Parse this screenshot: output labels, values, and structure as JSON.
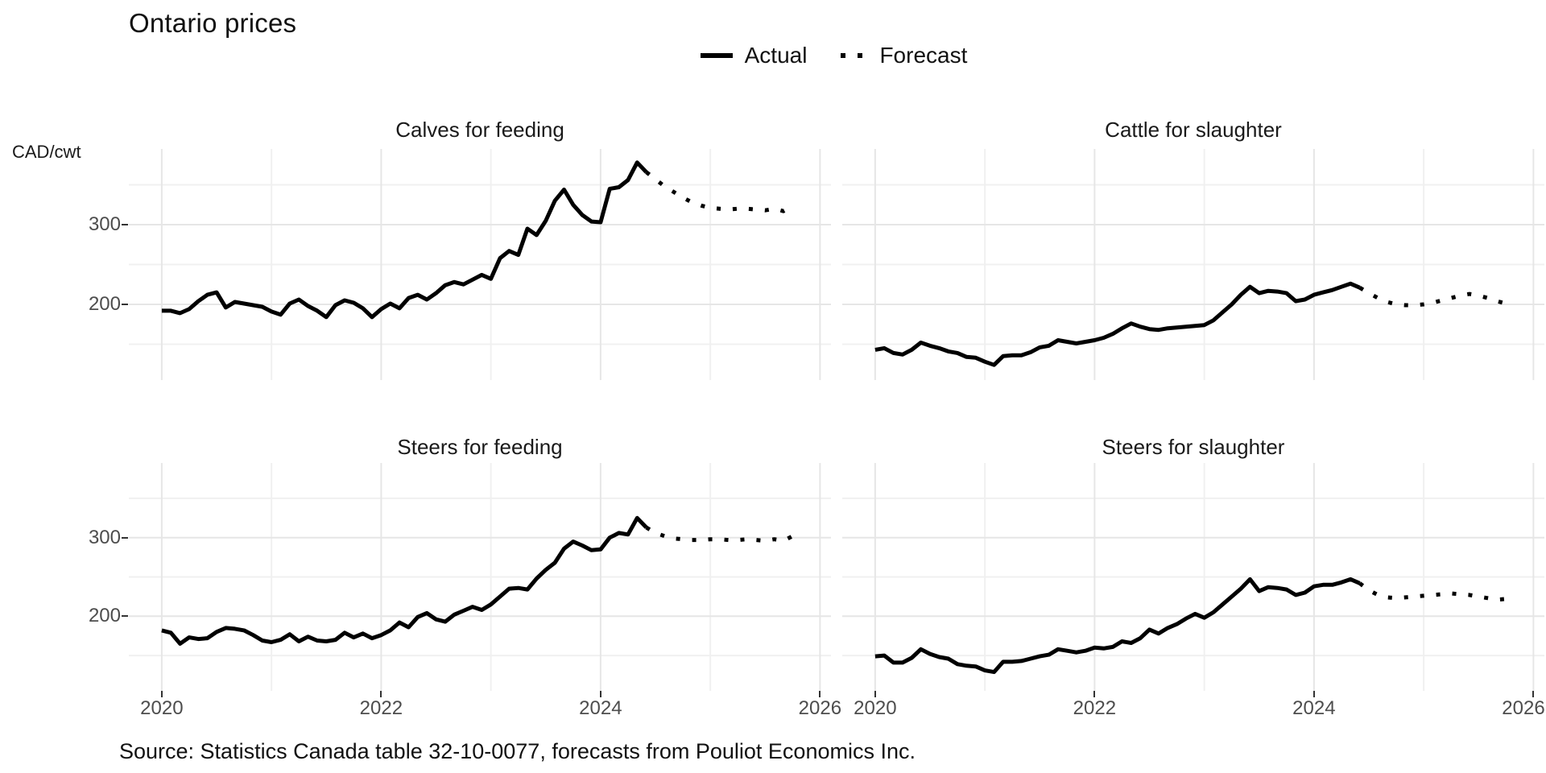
{
  "title": "Ontario prices",
  "y_axis_title": "CAD/cwt",
  "caption": "Source: Statistics Canada table 32-10-0077, forecasts from Pouliot Economics Inc.",
  "legend": {
    "actual_label": "Actual",
    "forecast_label": "Forecast",
    "position": "top-center"
  },
  "colors": {
    "line": "#000000",
    "grid_major": "#e6e6e6",
    "grid_minor": "#f0f0f0",
    "axis_text": "#4d4d4d",
    "tick": "#333333",
    "text": "#111111",
    "background": "#ffffff"
  },
  "chart_data": {
    "type": "line",
    "layout": "2x2 facets",
    "x_unit": "monthly",
    "start": "2020-01",
    "actual_end": "2024-06",
    "forecast_end": "2025-10",
    "xlim": [
      2019.7,
      2026.1
    ],
    "ylim": [
      105,
      395
    ],
    "x_major_ticks": [
      2020,
      2022,
      2024,
      2026
    ],
    "x_minor_ticks": [
      2021,
      2023,
      2025
    ],
    "y_major_ticks": [
      200,
      300
    ],
    "y_minor_ticks": [
      150,
      250,
      350
    ],
    "grid": true,
    "legend_entries": [
      "Actual",
      "Forecast"
    ],
    "series_style": {
      "actual": "solid",
      "forecast": "dotted"
    },
    "panels": [
      {
        "title": "Calves for feeding",
        "actual": [
          192,
          192,
          189,
          194,
          204,
          212,
          215,
          196,
          203,
          201,
          199,
          197,
          191,
          187,
          201,
          206,
          198,
          192,
          184,
          199,
          205,
          202,
          195,
          184,
          194,
          201,
          195,
          208,
          212,
          206,
          214,
          224,
          228,
          225,
          231,
          237,
          232,
          258,
          267,
          262,
          295,
          287,
          305,
          330,
          344,
          325,
          312,
          304,
          303,
          345,
          347,
          356,
          378,
          366
        ],
        "forecast": [
          366,
          357,
          348,
          341,
          334,
          328,
          324,
          321,
          320,
          319,
          320,
          320,
          319,
          318,
          320,
          317,
          323
        ]
      },
      {
        "title": "Cattle for slaughter",
        "actual": [
          143,
          145,
          139,
          137,
          143,
          152,
          148,
          145,
          141,
          139,
          134,
          133,
          128,
          124,
          135,
          136,
          136,
          140,
          146,
          148,
          155,
          153,
          151,
          153,
          155,
          158,
          163,
          170,
          176,
          172,
          169,
          168,
          170,
          171,
          172,
          173,
          174,
          180,
          190,
          200,
          212,
          222,
          214,
          217,
          216,
          214,
          204,
          206,
          212,
          215,
          218,
          222,
          226,
          221
        ],
        "forecast": [
          221,
          214,
          208,
          203,
          200,
          199,
          199,
          200,
          202,
          205,
          208,
          211,
          213,
          211,
          208,
          204,
          201
        ]
      },
      {
        "title": "Steers for feeding",
        "actual": [
          182,
          179,
          165,
          173,
          171,
          172,
          180,
          185,
          184,
          182,
          176,
          169,
          167,
          170,
          177,
          168,
          174,
          169,
          168,
          170,
          179,
          173,
          178,
          172,
          176,
          182,
          192,
          186,
          199,
          204,
          196,
          193,
          202,
          207,
          212,
          208,
          215,
          225,
          235,
          236,
          234,
          248,
          259,
          268,
          286,
          295,
          290,
          284,
          285,
          300,
          306,
          304,
          325,
          313
        ],
        "forecast": [
          313,
          306,
          302,
          299,
          298,
          297,
          297,
          298,
          298,
          297,
          297,
          298,
          297,
          296,
          298,
          296,
          302
        ]
      },
      {
        "title": "Steers for slaughter",
        "actual": [
          149,
          150,
          141,
          141,
          147,
          158,
          152,
          148,
          146,
          139,
          137,
          136,
          131,
          129,
          142,
          142,
          143,
          146,
          149,
          151,
          158,
          156,
          154,
          156,
          160,
          159,
          161,
          168,
          166,
          172,
          183,
          178,
          185,
          190,
          197,
          203,
          198,
          205,
          215,
          225,
          235,
          247,
          232,
          237,
          236,
          234,
          227,
          230,
          238,
          240,
          240,
          243,
          247,
          242
        ],
        "forecast": [
          242,
          233,
          227,
          224,
          223,
          224,
          225,
          226,
          227,
          228,
          229,
          228,
          227,
          225,
          223,
          221,
          222
        ]
      }
    ]
  }
}
